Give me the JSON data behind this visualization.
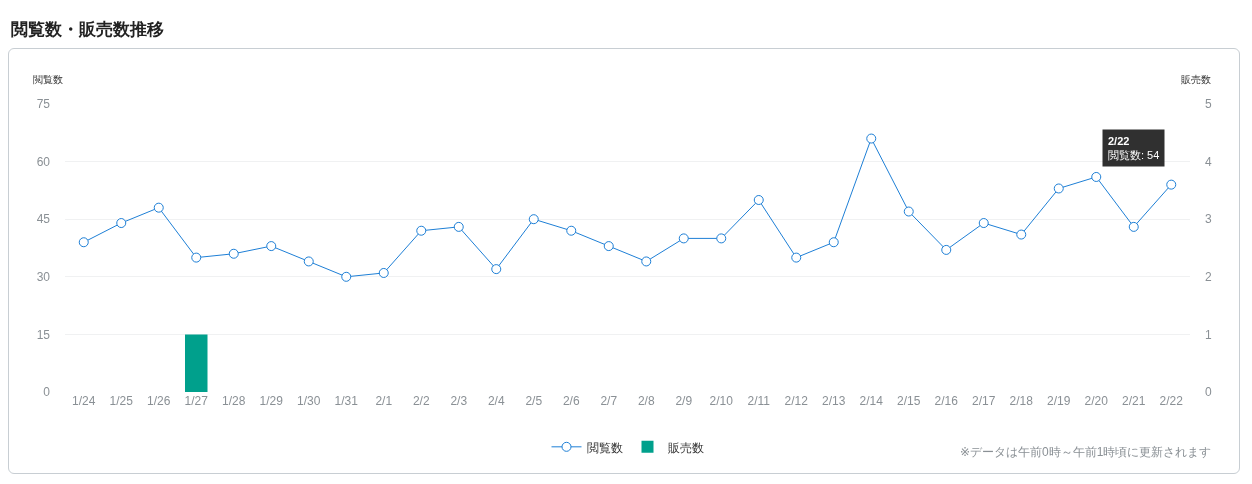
{
  "chart_data": {
    "type": "line",
    "title": "閲覧数・販売数推移",
    "ylabel": "閲覧数",
    "y2label": "販売数",
    "categories": [
      "1/24",
      "1/25",
      "1/26",
      "1/27",
      "1/28",
      "1/29",
      "1/30",
      "1/31",
      "2/1",
      "2/2",
      "2/3",
      "2/4",
      "2/5",
      "2/6",
      "2/7",
      "2/8",
      "2/9",
      "2/10",
      "2/11",
      "2/12",
      "2/13",
      "2/14",
      "2/15",
      "2/16",
      "2/17",
      "2/18",
      "2/19",
      "2/20",
      "2/21",
      "2/22"
    ],
    "series": [
      {
        "name": "閲覧数",
        "color": "#1e7fd6",
        "values": [
          39,
          44,
          48,
          35,
          36,
          38,
          34,
          30,
          31,
          42,
          43,
          32,
          45,
          42,
          38,
          34,
          40,
          40,
          50,
          35,
          39,
          66,
          47,
          37,
          44,
          41,
          53,
          56,
          43,
          54
        ]
      },
      {
        "name": "販売数",
        "type": "bar",
        "axis": "y2",
        "color": "#00a08c",
        "values": [
          0,
          0,
          0,
          1,
          0,
          0,
          0,
          0,
          0,
          0,
          0,
          0,
          0,
          0,
          0,
          0,
          0,
          0,
          0,
          0,
          0,
          0,
          0,
          0,
          0,
          0,
          0,
          0,
          0,
          0
        ]
      }
    ],
    "ylim": [
      0,
      75
    ],
    "yticks": [
      0,
      15,
      30,
      45,
      60,
      75
    ],
    "y2lim": [
      0,
      5
    ],
    "y2ticks": [
      0,
      1,
      2,
      3,
      4,
      5
    ],
    "grid": "y",
    "legend": "bottom",
    "marker": "circle",
    "line_style": "solid",
    "annotations": [
      {
        "text": "2/22\n閲覧数: 54",
        "x": "2/22",
        "y": 54
      },
      "※データは午前0時～午前1時頃に更新されます"
    ]
  }
}
